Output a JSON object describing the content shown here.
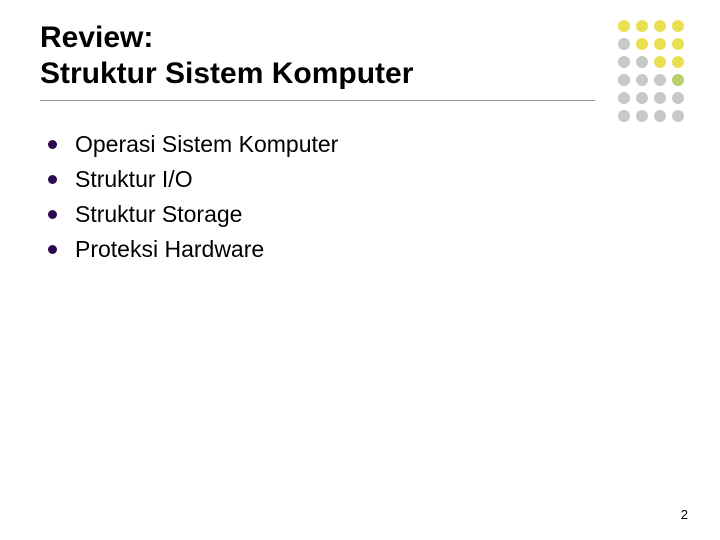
{
  "title": {
    "line1": "Review:",
    "line2": "Struktur Sistem Komputer",
    "fontsize": 30,
    "color": "#000000",
    "underline_color": "#999999"
  },
  "bullets": {
    "items": [
      "Operasi Sistem Komputer",
      "Struktur I/O",
      "Struktur Storage",
      "Proteksi Hardware"
    ],
    "fontsize": 23,
    "text_color": "#000000",
    "bullet_color": "#2d0a4f",
    "bullet_size": 9
  },
  "decoration": {
    "rows": 6,
    "cols": 4,
    "dot_size": 12,
    "gap": 6,
    "colors": [
      [
        "#e8e050",
        "#e8e050",
        "#e8e050",
        "#e8e050"
      ],
      [
        "#c8c8c8",
        "#e8e050",
        "#e8e050",
        "#e8e050"
      ],
      [
        "#c8c8c8",
        "#c8c8c8",
        "#e8e050",
        "#e8e050"
      ],
      [
        "#c8c8c8",
        "#c8c8c8",
        "#c8c8c8",
        "#b8d070"
      ],
      [
        "#c8c8c8",
        "#c8c8c8",
        "#c8c8c8",
        "#c8c8c8"
      ],
      [
        "#c8c8c8",
        "#c8c8c8",
        "#c8c8c8",
        "#c8c8c8"
      ]
    ]
  },
  "page_number": "2",
  "background_color": "#ffffff",
  "slide_width": 720,
  "slide_height": 540
}
